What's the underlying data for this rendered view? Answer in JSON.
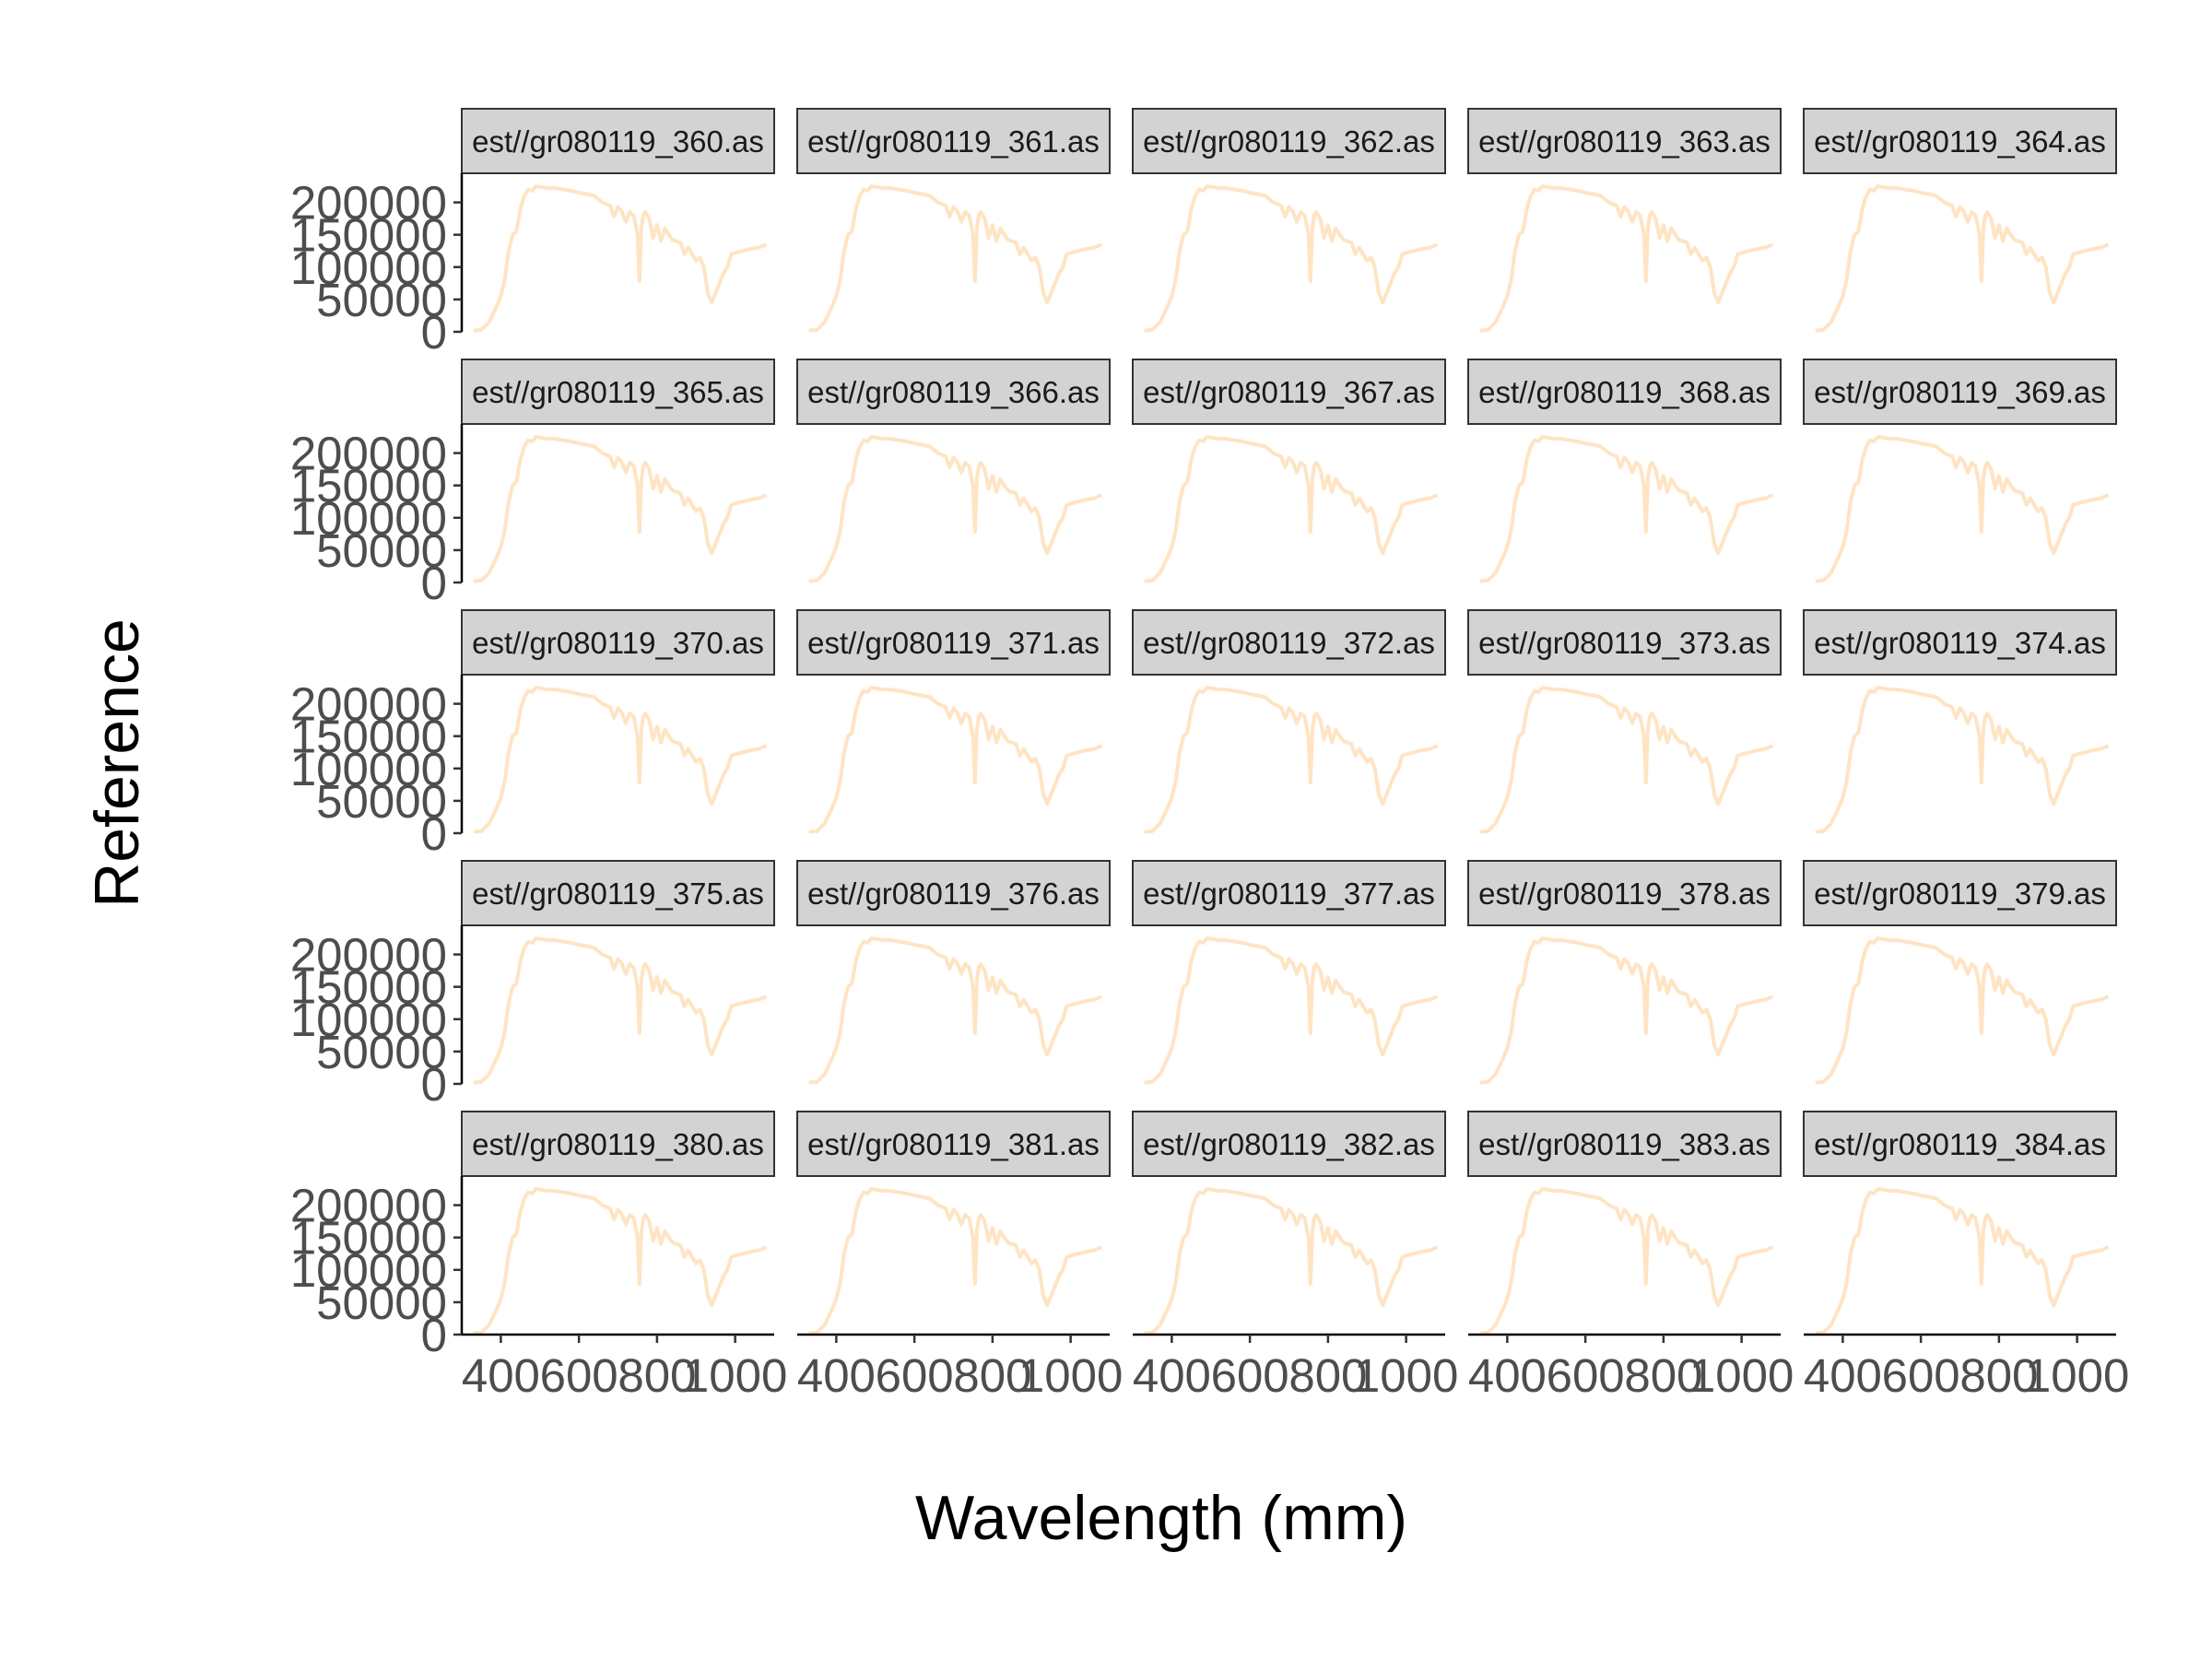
{
  "chart_data": {
    "type": "line",
    "layout": "facet-grid-5x5",
    "xlabel": "Wavelength (mm)",
    "ylabel": "Reference",
    "x_ticks": [
      400,
      600,
      800,
      1000
    ],
    "y_ticks": [
      0,
      50000,
      100000,
      150000,
      200000
    ],
    "xlim": [
      300,
      1100
    ],
    "ylim": [
      0,
      245000
    ],
    "line_color": "#FFE4C4",
    "strip_fill": "#D3D3D3",
    "grid": false,
    "panels": [
      {
        "label": "est//gr080119_360.as"
      },
      {
        "label": "est//gr080119_361.as"
      },
      {
        "label": "est//gr080119_362.as"
      },
      {
        "label": "est//gr080119_363.as"
      },
      {
        "label": "est//gr080119_364.as"
      },
      {
        "label": "est//gr080119_365.as"
      },
      {
        "label": "est//gr080119_366.as"
      },
      {
        "label": "est//gr080119_367.as"
      },
      {
        "label": "est//gr080119_368.as"
      },
      {
        "label": "est//gr080119_369.as"
      },
      {
        "label": "est//gr080119_370.as"
      },
      {
        "label": "est//gr080119_371.as"
      },
      {
        "label": "est//gr080119_372.as"
      },
      {
        "label": "est//gr080119_373.as"
      },
      {
        "label": "est//gr080119_374.as"
      },
      {
        "label": "est//gr080119_375.as"
      },
      {
        "label": "est//gr080119_376.as"
      },
      {
        "label": "est//gr080119_377.as"
      },
      {
        "label": "est//gr080119_378.as"
      },
      {
        "label": "est//gr080119_379.as"
      },
      {
        "label": "est//gr080119_380.as"
      },
      {
        "label": "est//gr080119_381.as"
      },
      {
        "label": "est//gr080119_382.as"
      },
      {
        "label": "est//gr080119_383.as"
      },
      {
        "label": "est//gr080119_384.as"
      }
    ],
    "series_shared": {
      "x": [
        330,
        350,
        370,
        390,
        400,
        410,
        420,
        430,
        440,
        450,
        460,
        470,
        480,
        490,
        500,
        520,
        540,
        560,
        580,
        600,
        620,
        640,
        660,
        680,
        690,
        700,
        710,
        720,
        730,
        740,
        750,
        755,
        760,
        765,
        770,
        780,
        790,
        800,
        810,
        820,
        830,
        840,
        850,
        860,
        870,
        880,
        890,
        900,
        910,
        920,
        930,
        940,
        950,
        960,
        970,
        980,
        990,
        1000,
        1020,
        1040,
        1060,
        1080
      ],
      "y": [
        2000,
        3000,
        15000,
        40000,
        55000,
        80000,
        125000,
        150000,
        155000,
        190000,
        210000,
        220000,
        218000,
        225000,
        224000,
        222000,
        222000,
        220000,
        218000,
        215000,
        213000,
        210000,
        200000,
        195000,
        178000,
        193000,
        186000,
        170000,
        185000,
        180000,
        150000,
        78000,
        160000,
        180000,
        185000,
        175000,
        145000,
        165000,
        140000,
        160000,
        150000,
        142000,
        140000,
        138000,
        120000,
        130000,
        120000,
        110000,
        115000,
        100000,
        60000,
        45000,
        60000,
        75000,
        90000,
        100000,
        120000,
        122000,
        125000,
        128000,
        130000,
        135000
      ]
    }
  }
}
